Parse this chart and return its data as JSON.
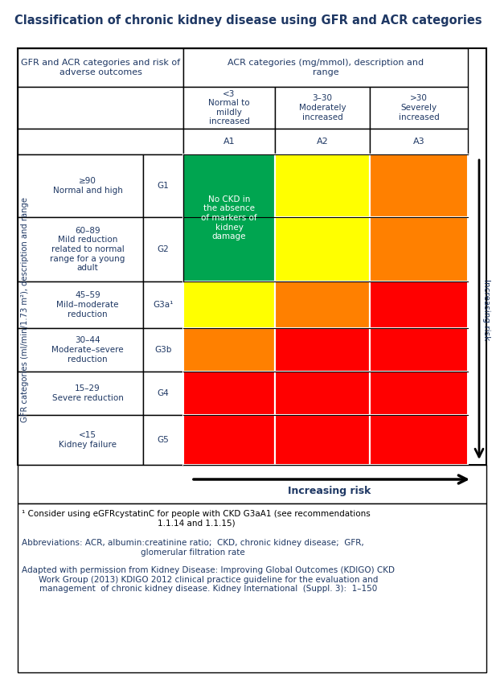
{
  "title": "Classification of chronic kidney disease using GFR and ACR categories",
  "title_color": "#1F3864",
  "title_fontsize": 10.5,
  "bg_color": "#FFFFFF",
  "header_text_color": "#1F3864",
  "cell_text_color": "#1F3864",
  "green_color": "#00A550",
  "yellow_color": "#FFFF00",
  "orange_color": "#FF8000",
  "red_color": "#FF0000",
  "grid_colors": [
    [
      "green",
      "yellow",
      "orange"
    ],
    [
      "green",
      "yellow",
      "orange"
    ],
    [
      "yellow",
      "orange",
      "red"
    ],
    [
      "orange",
      "red",
      "red"
    ],
    [
      "red",
      "red",
      "red"
    ],
    [
      "red",
      "red",
      "red"
    ]
  ],
  "gfr_labels": [
    [
      "≥90\nNormal and high",
      "G1"
    ],
    [
      "60–89\nMild reduction\nrelated to normal\nrange for a young\nadult",
      "G2"
    ],
    [
      "45–59\nMild–moderate\nreduction",
      "G3a¹"
    ],
    [
      "30–44\nModerate–severe\nreduction",
      "G3b"
    ],
    [
      "15–29\nSevere reduction",
      "G4"
    ],
    [
      "<15\nKidney failure",
      "G5"
    ]
  ],
  "acr_col_headers": [
    "<3\nNormal to\nmildly\nincreased",
    "3–30\nModerately\nincreased",
    ">30\nSeverely\nincreased"
  ],
  "acr_col_labels": [
    "A1",
    "A2",
    "A3"
  ],
  "green_cell_text": "No CKD in\nthe absence\nof markers of\nkidney\ndamage",
  "footnote1": "¹ Consider using eGFRcystatinC for people with CKD G3aA1 (see recommendations\n1.1.14 and 1.1.15)",
  "footnote2": "Abbreviations: ACR, albumin:creatinine ratio;  CKD, chronic kidney disease;  GFR,\nglomerular filtration rate",
  "footnote3": "Adapted with permission from Kidney Disease: Improving Global Outcomes (KDIGO) CKD\nWork Group (2013) KDIGO 2012 clinical practice guideline for the evaluation and\nmanagement  of chronic kidney disease. Kidney International  (Suppl. 3):  1–150",
  "increasing_risk_horiz": "Increasing risk",
  "increasing_risk_vert": "Increasing risk",
  "header1": "GFR and ACR categories and risk of\nadverse outcomes",
  "header2": "ACR categories (mg/mmol), description and\nrange",
  "gfr_vert_label": "GFR categories (ml/min/1.73 m²), description and range"
}
